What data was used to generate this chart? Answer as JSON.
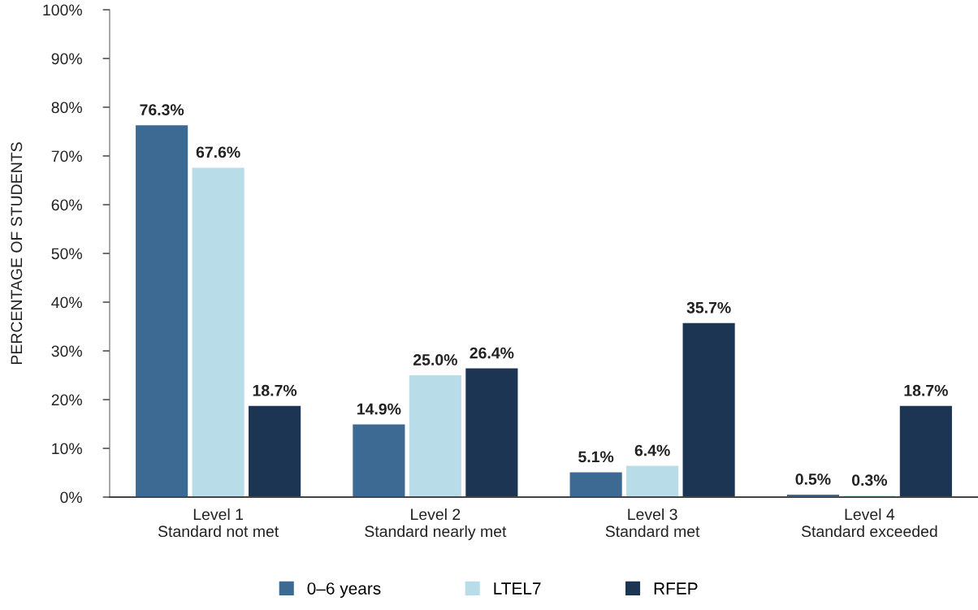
{
  "chart_data": {
    "type": "bar",
    "ylabel": "PERCENTAGE OF STUDENTS",
    "categories": [
      "Level 1\nStandard not met",
      "Level 2\nStandard nearly met",
      "Level 3\nStandard met",
      "Level 4\nStandard exceeded"
    ],
    "series": [
      {
        "name": "0–6 years",
        "color": "#3d6a93",
        "values": [
          76.3,
          14.9,
          5.1,
          0.5
        ],
        "value_labels": [
          "76.3%",
          "14.9%",
          "5.1%",
          "0.5%"
        ]
      },
      {
        "name": "LTEL7",
        "color": "#b9dde8",
        "values": [
          67.6,
          25.0,
          6.4,
          0.3
        ],
        "value_labels": [
          "67.6%",
          "25.0%",
          "6.4%",
          "0.3%"
        ]
      },
      {
        "name": "RFEP",
        "color": "#1c3553",
        "values": [
          18.7,
          26.4,
          35.7,
          18.7
        ],
        "value_labels": [
          "18.7%",
          "26.4%",
          "35.7%",
          "18.7%"
        ]
      }
    ],
    "ylim": [
      0,
      100
    ],
    "yticks": [
      {
        "value": 0,
        "label": "0%"
      },
      {
        "value": 10,
        "label": "10%"
      },
      {
        "value": 20,
        "label": "20%"
      },
      {
        "value": 30,
        "label": "30%"
      },
      {
        "value": 40,
        "label": "40%"
      },
      {
        "value": 50,
        "label": "50%"
      },
      {
        "value": 60,
        "label": "60%"
      },
      {
        "value": 70,
        "label": "70%"
      },
      {
        "value": 80,
        "label": "80%"
      },
      {
        "value": 90,
        "label": "90%"
      },
      {
        "value": 100,
        "label": "100%"
      }
    ],
    "grid": false,
    "legend": "bottom"
  }
}
